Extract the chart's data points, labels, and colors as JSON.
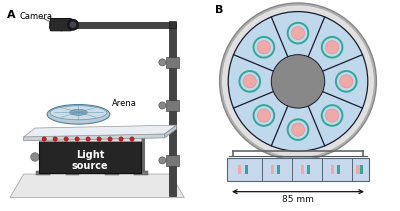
{
  "panel_A_label": "A",
  "panel_B_label": "B",
  "bg": "#ffffff",
  "camera_label": "Camera",
  "arena_label": "Arena",
  "light_source_label": "Light\nsource",
  "measurement_label": "85 mm",
  "outer_ring_color": "#c0c0c0",
  "inner_fill": "#c0d8ec",
  "center_gray": "#888888",
  "sector_line": "#1a1a2e",
  "small_fill": "#f0a8a8",
  "small_ring": "#30a898",
  "pole_dark": "#444444",
  "pole_mid": "#666666",
  "pole_light": "#999999",
  "table_top_face": "#e8eef4",
  "table_top_side": "#c8d4dc",
  "table_leg_dark": "#555555",
  "box_dark": "#252525",
  "box_text": "#ffffff",
  "led_red": "#cc2020",
  "led_white": "#e8e8e8",
  "floor_fill": "#eeeeee",
  "tube_channel_fill": "#c8d8ec",
  "tube_channel_edge": "#556677",
  "bracket_fill": "#aaaaaa",
  "arrow_color": "#111111"
}
